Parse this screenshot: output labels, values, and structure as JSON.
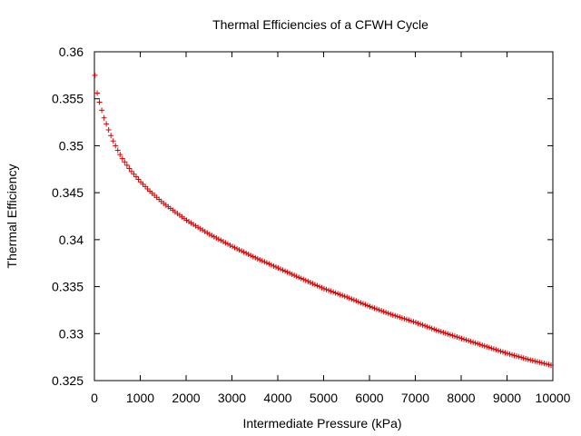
{
  "chart_data": {
    "type": "scatter",
    "title": "Thermal Efficiencies of a CFWH Cycle",
    "xlabel": "Intermediate Pressure (kPa)",
    "ylabel": "Thermal Efficiency",
    "xlim": [
      0,
      10000
    ],
    "ylim": [
      0.325,
      0.36
    ],
    "xticks": [
      "0",
      "1000",
      "2000",
      "3000",
      "4000",
      "5000",
      "6000",
      "7000",
      "8000",
      "9000",
      "10000"
    ],
    "yticks": [
      "0.325",
      "0.33",
      "0.335",
      "0.34",
      "0.345",
      "0.35",
      "0.355",
      "0.36"
    ],
    "grid": false,
    "legend": "none",
    "marker": "plus",
    "color": "#dd0000",
    "series": [
      {
        "x": [
          10,
          50,
          100,
          200,
          300,
          400,
          500,
          600,
          800,
          1000,
          1200,
          1500,
          2000,
          2500,
          3000,
          3500,
          4000,
          4500,
          5000,
          5500,
          6000,
          6500,
          7000,
          7500,
          8000,
          8500,
          9000,
          9500,
          10000
        ],
        "values": [
          0.3575,
          0.3558,
          0.3548,
          0.3531,
          0.3518,
          0.3506,
          0.3496,
          0.3487,
          0.3473,
          0.3462,
          0.3452,
          0.3439,
          0.3421,
          0.3406,
          0.3393,
          0.3381,
          0.337,
          0.3359,
          0.3348,
          0.3339,
          0.3329,
          0.332,
          0.3312,
          0.3303,
          0.3295,
          0.3287,
          0.3279,
          0.3272,
          0.3266
        ]
      }
    ]
  }
}
